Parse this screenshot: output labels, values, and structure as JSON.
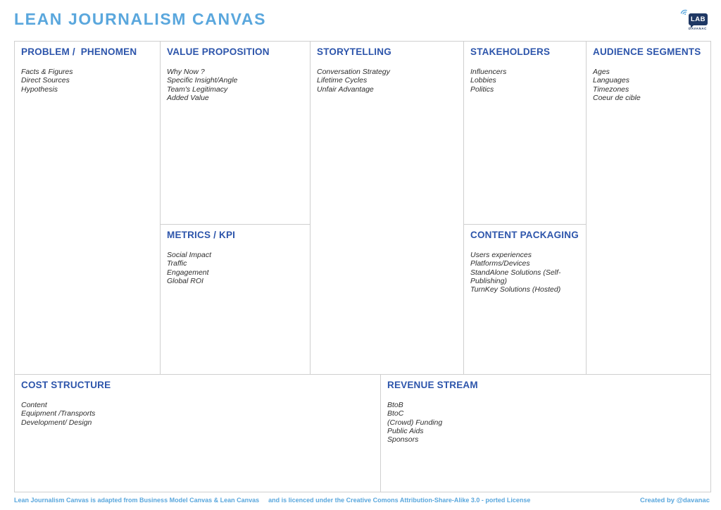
{
  "header": {
    "title": "LEAN JOURNALISM CANVAS",
    "logo": {
      "bubble_text": "LAB",
      "subtext": "DAVANAC"
    }
  },
  "canvas": {
    "problem": {
      "title": "PROBLEM /  PHENOMEN",
      "items": [
        "Facts & Figures",
        "Direct Sources",
        "Hypothesis"
      ]
    },
    "value_proposition": {
      "title": "VALUE PROPOSITION",
      "items": [
        "Why Now ?",
        "Specific Insight/Angle",
        "Team's Legitimacy",
        "Added Value"
      ]
    },
    "metrics": {
      "title": "METRICS / KPI",
      "items": [
        "Social Impact",
        "Traffic",
        "Engagement",
        "Global ROI"
      ]
    },
    "storytelling": {
      "title": "STORYTELLING",
      "items": [
        "Conversation Strategy",
        "Lifetime Cycles",
        "Unfair Advantage"
      ]
    },
    "stakeholders": {
      "title": "STAKEHOLDERS",
      "items": [
        "Influencers",
        "Lobbies",
        "Politics"
      ]
    },
    "content_packaging": {
      "title": "CONTENT PACKAGING",
      "items": [
        "Users experiences",
        "Platforms/Devices",
        "StandAlone Solutions (Self-Publishing)",
        "TurnKey Solutions (Hosted)"
      ]
    },
    "audience": {
      "title": "AUDIENCE SEGMENTS",
      "items": [
        "Ages",
        "Languages",
        "Timezones",
        "Coeur de cible"
      ]
    },
    "cost": {
      "title": "COST STRUCTURE",
      "items": [
        "Content",
        "Equipment /Transports",
        "Development/ Design"
      ]
    },
    "revenue": {
      "title": "REVENUE STREAM",
      "items": [
        "BtoB",
        "BtoC",
        "(Crowd) Funding",
        "Public Aids",
        "Sponsors"
      ]
    }
  },
  "footer": {
    "license_part1": "Lean Journalism Canvas is adapted from Business Model Canvas & Lean Canvas",
    "license_part2": "and is licenced under the Creative Comons Attribution-Share-Alike 3.0 - ported License",
    "credit": "Created by @davanac"
  },
  "colors": {
    "accent_light_blue": "#5aa7dd",
    "section_header_blue": "#2d55ab",
    "logo_navy": "#1f3864",
    "body_text": "#2d2d2d",
    "grid_border": "#cfcfcf"
  }
}
